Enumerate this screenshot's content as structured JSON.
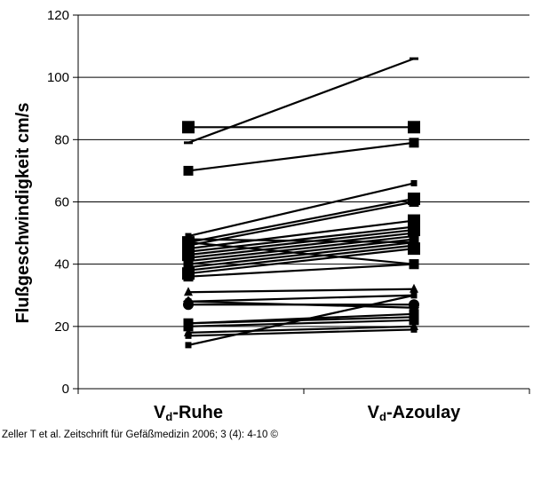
{
  "chart_data": {
    "type": "line",
    "ylabel": "Flußgeschwindigkeit cm/s",
    "ylim": [
      0,
      120
    ],
    "yticks": [
      0,
      20,
      40,
      60,
      80,
      100,
      120
    ],
    "grid": true,
    "categories": [
      {
        "main": "V",
        "sub": "d",
        "rest": "-Ruhe"
      },
      {
        "main": "V",
        "sub": "d",
        "rest": "-Azoulay"
      }
    ],
    "series": [
      {
        "values": [
          79,
          106
        ],
        "marker": "dash"
      },
      {
        "values": [
          84,
          84
        ],
        "marker": "square-large"
      },
      {
        "values": [
          70,
          79
        ],
        "marker": "square"
      },
      {
        "values": [
          49,
          66
        ],
        "marker": "square-small"
      },
      {
        "values": [
          47,
          61
        ],
        "marker": "square-large"
      },
      {
        "values": [
          46,
          60
        ],
        "marker": "square"
      },
      {
        "values": [
          45,
          54
        ],
        "marker": "square-large"
      },
      {
        "values": [
          44,
          52
        ],
        "marker": "square"
      },
      {
        "values": [
          43,
          51
        ],
        "marker": "square-large"
      },
      {
        "values": [
          42,
          50
        ],
        "marker": "diamond"
      },
      {
        "values": [
          41,
          49
        ],
        "marker": "square"
      },
      {
        "values": [
          40,
          48
        ],
        "marker": "triangle"
      },
      {
        "values": [
          39,
          47
        ],
        "marker": "square"
      },
      {
        "values": [
          48,
          47
        ],
        "marker": "square-small"
      },
      {
        "values": [
          38,
          46
        ],
        "marker": "square"
      },
      {
        "values": [
          37,
          45
        ],
        "marker": "square-large"
      },
      {
        "values": [
          36,
          40
        ],
        "marker": "square"
      },
      {
        "values": [
          47,
          40
        ],
        "marker": "square"
      },
      {
        "values": [
          31,
          32
        ],
        "marker": "triangle"
      },
      {
        "values": [
          28,
          30
        ],
        "marker": "square-small"
      },
      {
        "values": [
          27,
          27
        ],
        "marker": "circle"
      },
      {
        "values": [
          28,
          26
        ],
        "marker": "diamond"
      },
      {
        "values": [
          21,
          24
        ],
        "marker": "square"
      },
      {
        "values": [
          21,
          23
        ],
        "marker": "square"
      },
      {
        "values": [
          20,
          22
        ],
        "marker": "square"
      },
      {
        "values": [
          18,
          20
        ],
        "marker": "triangle"
      },
      {
        "values": [
          17,
          19
        ],
        "marker": "square-small"
      },
      {
        "values": [
          14,
          30
        ],
        "marker": "square-small"
      }
    ]
  },
  "caption": "Zeller T et al. Zeitschrift für Gefäßmedizin 2006; 3 (4): 4-10 ©"
}
